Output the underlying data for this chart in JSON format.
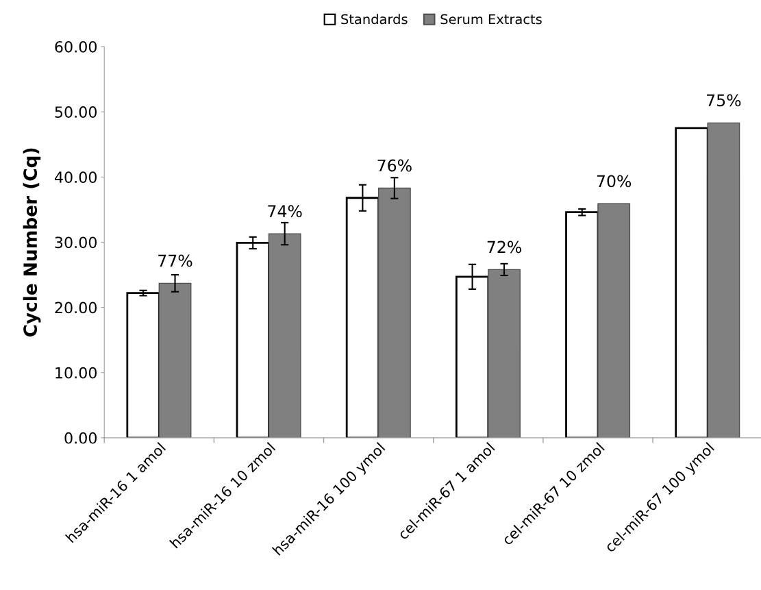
{
  "chart_data": {
    "type": "bar",
    "ylabel": "Cycle Number (Cq)",
    "categories": [
      "hsa-miR-16 1 amol",
      "hsa-miR-16 10 zmol",
      "hsa-miR-16 100 ymol",
      "cel-miR-67 1 amol",
      "cel-miR-67 10 zmol",
      "cel-miR-67 100 ymol"
    ],
    "series": [
      {
        "name": "Standards",
        "color": "#ffffff",
        "values": [
          22.2,
          29.9,
          36.8,
          24.7,
          34.6,
          47.5
        ],
        "errors": [
          0.4,
          0.9,
          2.0,
          1.9,
          0.5,
          null
        ]
      },
      {
        "name": "Serum Extracts",
        "color": "#808080",
        "values": [
          23.7,
          31.3,
          38.3,
          25.8,
          35.9,
          48.3
        ],
        "errors": [
          1.3,
          1.7,
          1.6,
          0.9,
          null,
          null
        ]
      }
    ],
    "annotations": [
      {
        "text": "77%",
        "x": "hsa-miR-16 1 amol",
        "y": 23.7
      },
      {
        "text": "74%",
        "x": "hsa-miR-16 10 zmol",
        "y": 31.3
      },
      {
        "text": "76%",
        "x": "hsa-miR-16 100 ymol",
        "y": 38.3
      },
      {
        "text": "72%",
        "x": "cel-miR-67 1 amol",
        "y": 25.8
      },
      {
        "text": "70%",
        "x": "cel-miR-67 10 zmol",
        "y": 35.9
      },
      {
        "text": "75%",
        "x": "cel-miR-67 100 ymol",
        "y": 48.3
      }
    ],
    "ylim": [
      0,
      60
    ],
    "yticks": [
      {
        "value": 0,
        "label": "0.00"
      },
      {
        "value": 10,
        "label": "10.00"
      },
      {
        "value": 20,
        "label": "20.00"
      },
      {
        "value": 30,
        "label": "30.00"
      },
      {
        "value": 40,
        "label": "40.00"
      },
      {
        "value": 50,
        "label": "50.00"
      },
      {
        "value": 60,
        "label": "60.00"
      }
    ],
    "grid": false,
    "legend": "top"
  }
}
